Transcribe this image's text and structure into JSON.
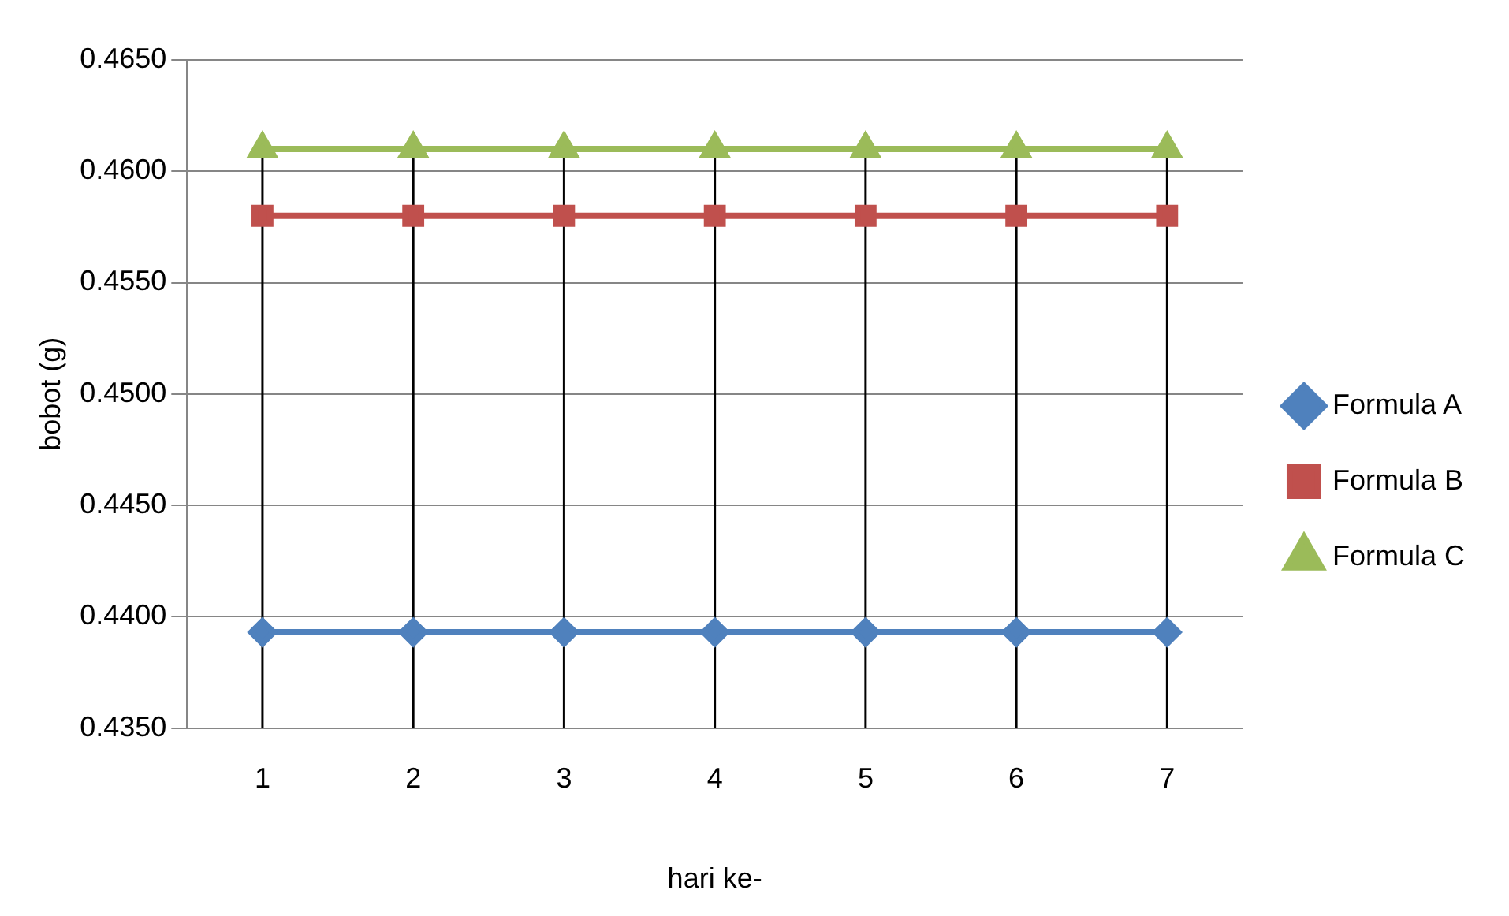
{
  "chart_data": {
    "type": "line",
    "xlabel": "hari ke-",
    "ylabel": "bobot (g)",
    "categories": [
      "1",
      "2",
      "3",
      "4",
      "5",
      "6",
      "7"
    ],
    "series": [
      {
        "name": "Formula A",
        "color": "#4f81bd",
        "marker": "diamond",
        "values": [
          0.4393,
          0.4393,
          0.4393,
          0.4393,
          0.4393,
          0.4393,
          0.4393
        ]
      },
      {
        "name": "Formula B",
        "color": "#c0504d",
        "marker": "square",
        "values": [
          0.458,
          0.458,
          0.458,
          0.458,
          0.458,
          0.458,
          0.458
        ]
      },
      {
        "name": "Formula C",
        "color": "#9bbb59",
        "marker": "triangle",
        "values": [
          0.461,
          0.461,
          0.461,
          0.461,
          0.461,
          0.461,
          0.461
        ]
      }
    ],
    "ylim": [
      0.435,
      0.465
    ],
    "yticks": [
      {
        "value": 0.435,
        "label": "0.4350"
      },
      {
        "value": 0.44,
        "label": "0.4400"
      },
      {
        "value": 0.445,
        "label": "0.4450"
      },
      {
        "value": 0.45,
        "label": "0.4500"
      },
      {
        "value": 0.455,
        "label": "0.4550"
      },
      {
        "value": 0.46,
        "label": "0.4600"
      },
      {
        "value": 0.465,
        "label": "0.4650"
      }
    ],
    "grid": true,
    "legend": "right"
  }
}
